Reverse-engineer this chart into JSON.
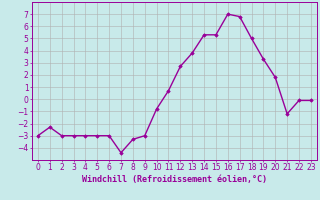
{
  "x": [
    0,
    1,
    2,
    3,
    4,
    5,
    6,
    7,
    8,
    9,
    10,
    11,
    12,
    13,
    14,
    15,
    16,
    17,
    18,
    19,
    20,
    21,
    22,
    23
  ],
  "y": [
    -3,
    -2.3,
    -3,
    -3,
    -3,
    -3,
    -3,
    -4.4,
    -3.3,
    -3,
    -0.8,
    0.7,
    2.7,
    3.8,
    5.3,
    5.3,
    7.0,
    6.8,
    5.0,
    3.3,
    1.8,
    -1.2,
    -0.1,
    -0.1
  ],
  "line_color": "#990099",
  "marker": "D",
  "marker_size": 1.8,
  "line_width": 1.0,
  "bg_color": "#c8eaea",
  "grid_color": "#b0b0b0",
  "xlabel": "Windchill (Refroidissement éolien,°C)",
  "xlabel_color": "#990099",
  "xlabel_fontsize": 6.0,
  "ylim": [
    -5,
    8
  ],
  "xlim": [
    -0.5,
    23.5
  ],
  "yticks": [
    -4,
    -3,
    -2,
    -1,
    0,
    1,
    2,
    3,
    4,
    5,
    6,
    7
  ],
  "xticks": [
    0,
    1,
    2,
    3,
    4,
    5,
    6,
    7,
    8,
    9,
    10,
    11,
    12,
    13,
    14,
    15,
    16,
    17,
    18,
    19,
    20,
    21,
    22,
    23
  ],
  "tick_fontsize": 5.5,
  "tick_color": "#990099",
  "spine_color": "#990099"
}
